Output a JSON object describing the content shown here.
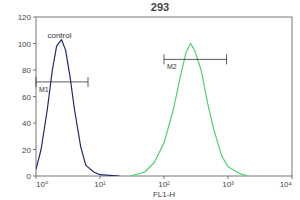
{
  "chart_data": {
    "type": "line",
    "title": "293",
    "x_label": "FL1-H",
    "log": "x",
    "xlim": [
      1,
      10000
    ],
    "xticks": [
      {
        "value": 1,
        "label": "10⁰"
      },
      {
        "value": 10,
        "label": "10¹"
      },
      {
        "value": 100,
        "label": "10²"
      },
      {
        "value": 1000,
        "label": "10³"
      },
      {
        "value": 10000,
        "label": "10⁴"
      }
    ],
    "ylim": [
      0,
      120
    ],
    "yticks": [
      0,
      20,
      40,
      60,
      80,
      100,
      120
    ],
    "series": [
      {
        "name": "control",
        "color": "#1f2a6e",
        "x": [
          1,
          1.2,
          1.5,
          1.8,
          2.1,
          2.5,
          2.9,
          3.4,
          4,
          5,
          6,
          8,
          10,
          20
        ],
        "values": [
          5,
          20,
          50,
          80,
          98,
          103,
          95,
          75,
          50,
          22,
          8,
          3,
          1,
          0
        ]
      },
      {
        "color": "#4cd36a",
        "x": [
          30,
          50,
          70,
          100,
          140,
          180,
          220,
          260,
          300,
          380,
          480,
          600,
          800,
          1000,
          1500,
          2000
        ],
        "values": [
          0,
          3,
          10,
          25,
          50,
          75,
          93,
          100,
          95,
          80,
          55,
          35,
          15,
          7,
          2,
          0
        ]
      }
    ],
    "gates": [
      {
        "label": "M1",
        "range": [
          1,
          6.5
        ],
        "y": 71
      },
      {
        "label": "M2",
        "range": [
          100,
          950
        ],
        "y": 88
      }
    ]
  }
}
